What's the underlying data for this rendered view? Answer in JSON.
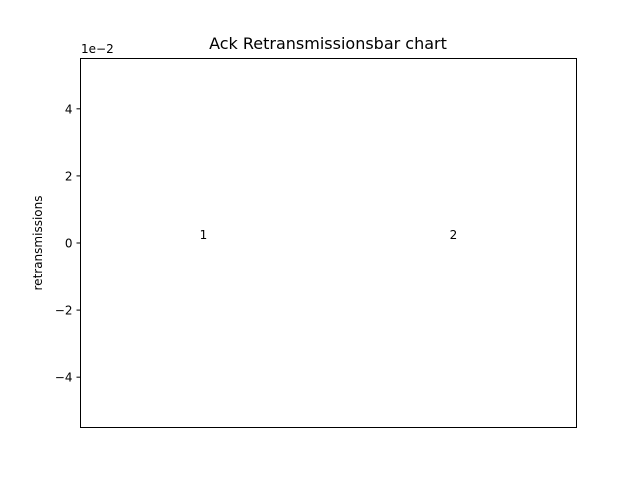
{
  "chart_data": {
    "type": "bar",
    "title": "Ack Retransmissionsbar chart",
    "xlabel": "",
    "ylabel": "retransmissions",
    "scale_label": "1e−2",
    "categories": [
      "1",
      "2"
    ],
    "values": [
      0,
      0
    ],
    "data_labels": [
      "1",
      "2"
    ],
    "ylim": [
      -0.055,
      0.055
    ],
    "yticks": [
      {
        "value": -0.04,
        "label": "−4"
      },
      {
        "value": -0.02,
        "label": "−2"
      },
      {
        "value": 0,
        "label": "0"
      },
      {
        "value": 0.02,
        "label": "2"
      },
      {
        "value": 0.04,
        "label": "4"
      }
    ],
    "grid": false,
    "legend": "none"
  },
  "colors": {
    "axes": "#000000",
    "background": "#ffffff",
    "bar": "#1f77b4"
  }
}
